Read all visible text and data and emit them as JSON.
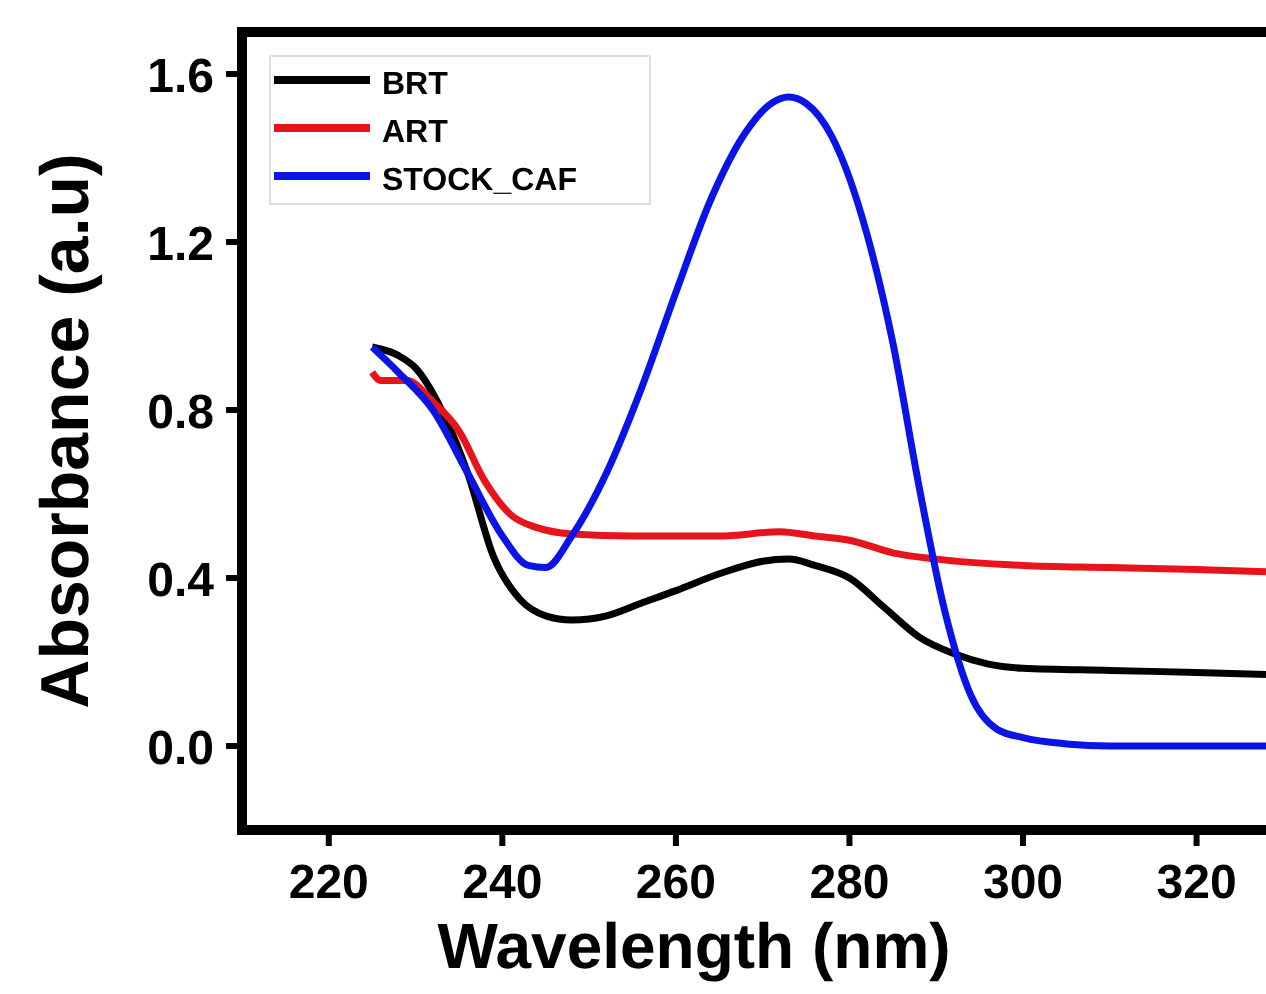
{
  "chart_data": {
    "type": "line",
    "xlabel": "Wavelength (nm)",
    "ylabel": "Absorbance (a.u)",
    "xlim": [
      210,
      328
    ],
    "xticks": [
      220,
      240,
      260,
      280,
      300,
      320
    ],
    "ylim": [
      -0.2,
      1.7
    ],
    "yticks": [
      {
        "value": 0,
        "label": "0.0"
      },
      0.4,
      0.8,
      1.2,
      1.6
    ],
    "grid": false,
    "legend": "top left",
    "line_style": "solid",
    "series": [
      {
        "name": "BRT",
        "color": "#000000",
        "x": [
          225,
          228,
          230,
          233,
          236,
          239,
          242,
          245,
          248,
          252,
          256,
          260,
          265,
          270,
          273,
          276,
          280,
          284,
          288,
          292,
          296,
          300,
          310,
          320,
          328
        ],
        "values": [
          0.95,
          0.93,
          0.9,
          0.8,
          0.65,
          0.45,
          0.35,
          0.31,
          0.3,
          0.31,
          0.34,
          0.37,
          0.41,
          0.44,
          0.445,
          0.43,
          0.4,
          0.33,
          0.26,
          0.22,
          0.195,
          0.185,
          0.18,
          0.175,
          0.17
        ]
      },
      {
        "name": "ART",
        "color": "#e8141c",
        "x": [
          225,
          226,
          229,
          232,
          235,
          238,
          241,
          244,
          248,
          255,
          265,
          272,
          276,
          280,
          285,
          290,
          300,
          310,
          320,
          328
        ],
        "values": [
          0.89,
          0.87,
          0.87,
          0.82,
          0.75,
          0.63,
          0.55,
          0.52,
          0.505,
          0.5,
          0.5,
          0.51,
          0.5,
          0.49,
          0.46,
          0.445,
          0.43,
          0.425,
          0.42,
          0.415
        ]
      },
      {
        "name": "STOCK_CAF",
        "color": "#0a14e6",
        "x": [
          225,
          228,
          232,
          236,
          240,
          243,
          245,
          248,
          252,
          256,
          260,
          264,
          268,
          271,
          273,
          275,
          278,
          282,
          285,
          288,
          291,
          294,
          297,
          300,
          305,
          310,
          328
        ],
        "values": [
          0.95,
          0.89,
          0.8,
          0.65,
          0.5,
          0.43,
          0.425,
          0.5,
          0.65,
          0.85,
          1.08,
          1.3,
          1.46,
          1.53,
          1.545,
          1.53,
          1.45,
          1.22,
          0.96,
          0.62,
          0.32,
          0.12,
          0.04,
          0.02,
          0.005,
          0,
          0
        ]
      }
    ]
  }
}
